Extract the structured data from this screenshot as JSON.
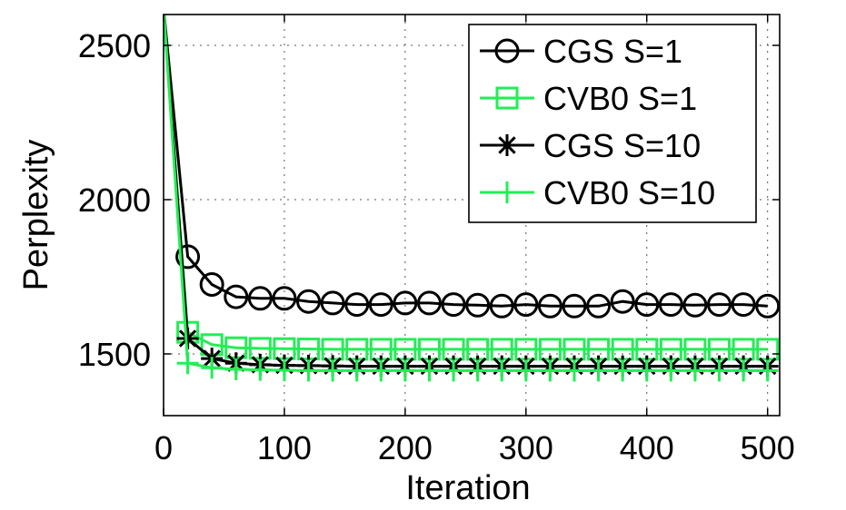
{
  "chart_data": {
    "type": "line",
    "title": "",
    "xlabel": "Iteration",
    "ylabel": "Perplexity",
    "xlim": [
      0,
      510
    ],
    "ylim": [
      1300,
      2600
    ],
    "xticks": [
      0,
      100,
      200,
      300,
      400,
      500
    ],
    "yticks": [
      1500,
      2000,
      2500
    ],
    "grid": true,
    "legend_position": "top-right",
    "series": [
      {
        "name": "CGS S=1",
        "color": "#000000",
        "marker": "circle",
        "x": [
          0,
          20,
          40,
          60,
          80,
          100,
          120,
          140,
          160,
          180,
          200,
          220,
          240,
          260,
          280,
          300,
          320,
          340,
          360,
          380,
          400,
          420,
          440,
          460,
          480,
          500
        ],
        "y": [
          2620,
          1815,
          1725,
          1685,
          1680,
          1680,
          1670,
          1665,
          1660,
          1660,
          1665,
          1665,
          1660,
          1658,
          1655,
          1660,
          1655,
          1655,
          1655,
          1670,
          1660,
          1660,
          1658,
          1660,
          1660,
          1655
        ]
      },
      {
        "name": "CVB0 S=1",
        "color": "#22ee55",
        "marker": "square",
        "x": [
          0,
          20,
          40,
          60,
          80,
          100,
          120,
          140,
          160,
          180,
          200,
          220,
          240,
          260,
          280,
          300,
          320,
          340,
          360,
          380,
          400,
          420,
          440,
          460,
          480,
          500
        ],
        "y": [
          2620,
          1570,
          1530,
          1520,
          1518,
          1517,
          1516,
          1515,
          1515,
          1515,
          1515,
          1515,
          1515,
          1515,
          1515,
          1515,
          1515,
          1515,
          1515,
          1515,
          1515,
          1515,
          1515,
          1515,
          1515,
          1515
        ]
      },
      {
        "name": "CGS S=10",
        "color": "#000000",
        "marker": "star",
        "x": [
          0,
          20,
          40,
          60,
          80,
          100,
          120,
          140,
          160,
          180,
          200,
          220,
          240,
          260,
          280,
          300,
          320,
          340,
          360,
          380,
          400,
          420,
          440,
          460,
          480,
          500
        ],
        "y": [
          2620,
          1550,
          1485,
          1470,
          1465,
          1463,
          1462,
          1461,
          1460,
          1460,
          1460,
          1460,
          1460,
          1460,
          1460,
          1460,
          1460,
          1460,
          1460,
          1460,
          1460,
          1460,
          1460,
          1460,
          1460,
          1460
        ]
      },
      {
        "name": "CVB0 S=10",
        "color": "#22ee55",
        "marker": "plus",
        "x": [
          0,
          20,
          40,
          60,
          80,
          100,
          120,
          140,
          160,
          180,
          200,
          220,
          240,
          260,
          280,
          300,
          320,
          340,
          360,
          380,
          400,
          420,
          440,
          460,
          480,
          500
        ],
        "y": [
          2620,
          1470,
          1455,
          1450,
          1448,
          1447,
          1446,
          1446,
          1446,
          1446,
          1446,
          1446,
          1446,
          1446,
          1446,
          1446,
          1446,
          1446,
          1446,
          1446,
          1446,
          1446,
          1446,
          1446,
          1446,
          1446
        ]
      }
    ]
  }
}
